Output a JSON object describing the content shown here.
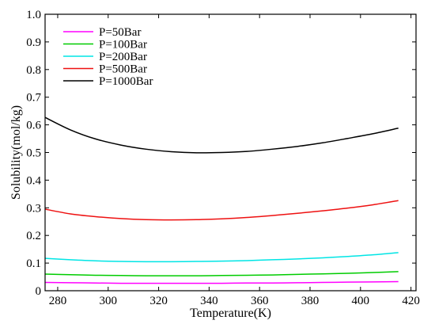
{
  "chart_data": {
    "type": "line",
    "xlabel": "Temperature(K)",
    "ylabel": "Solubility(mol/kg)",
    "xlim": [
      275,
      422
    ],
    "ylim": [
      0,
      1.0
    ],
    "x_ticks": [
      280,
      300,
      320,
      340,
      360,
      380,
      400,
      420
    ],
    "x_tick_labels": [
      "280",
      "300",
      "320",
      "340",
      "360",
      "380",
      "400",
      "420"
    ],
    "y_ticks": [
      0,
      0.1,
      0.2,
      0.3,
      0.4,
      0.5,
      0.6,
      0.7,
      0.8,
      0.9,
      1.0
    ],
    "y_tick_labels": [
      "0",
      "0.1",
      "0.2",
      "0.3",
      "0.4",
      "0.5",
      "0.6",
      "0.7",
      "0.8",
      "0.9",
      "1.0"
    ],
    "grid": false,
    "legend_position": "top-left",
    "x": [
      275,
      285,
      295,
      305,
      315,
      325,
      335,
      345,
      355,
      365,
      375,
      385,
      395,
      405,
      415
    ],
    "series": [
      {
        "name": "P=50Bar",
        "color": "#ff00ff",
        "values": [
          0.03,
          0.029,
          0.028,
          0.027,
          0.027,
          0.027,
          0.027,
          0.027,
          0.028,
          0.028,
          0.029,
          0.03,
          0.031,
          0.032,
          0.033
        ]
      },
      {
        "name": "P=100Bar",
        "color": "#00cc00",
        "values": [
          0.06,
          0.058,
          0.056,
          0.055,
          0.054,
          0.054,
          0.054,
          0.055,
          0.056,
          0.057,
          0.059,
          0.061,
          0.063,
          0.066,
          0.069
        ]
      },
      {
        "name": "P=200Bar",
        "color": "#00e5e5",
        "values": [
          0.117,
          0.112,
          0.108,
          0.106,
          0.105,
          0.105,
          0.106,
          0.107,
          0.109,
          0.112,
          0.115,
          0.119,
          0.124,
          0.13,
          0.138
        ]
      },
      {
        "name": "P=500Bar",
        "color": "#ee1111",
        "values": [
          0.295,
          0.278,
          0.268,
          0.261,
          0.257,
          0.256,
          0.257,
          0.26,
          0.265,
          0.272,
          0.28,
          0.289,
          0.299,
          0.311,
          0.326
        ]
      },
      {
        "name": "P=1000Bar",
        "color": "#000000",
        "values": [
          0.627,
          0.582,
          0.549,
          0.527,
          0.512,
          0.503,
          0.499,
          0.5,
          0.504,
          0.512,
          0.522,
          0.535,
          0.551,
          0.568,
          0.588
        ]
      }
    ]
  }
}
